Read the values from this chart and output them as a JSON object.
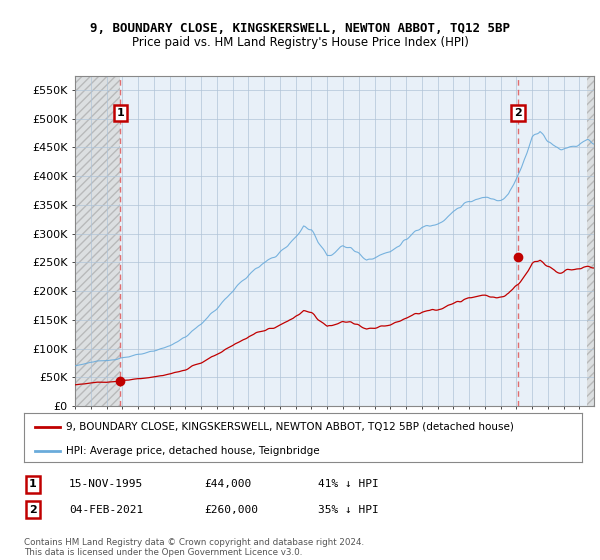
{
  "title": "9, BOUNDARY CLOSE, KINGSKERSWELL, NEWTON ABBOT, TQ12 5BP",
  "subtitle": "Price paid vs. HM Land Registry's House Price Index (HPI)",
  "ylabel_values": [
    "£0",
    "£50K",
    "£100K",
    "£150K",
    "£200K",
    "£250K",
    "£300K",
    "£350K",
    "£400K",
    "£450K",
    "£500K",
    "£550K"
  ],
  "y_ticks": [
    0,
    50000,
    100000,
    150000,
    200000,
    250000,
    300000,
    350000,
    400000,
    450000,
    500000,
    550000
  ],
  "ylim": [
    0,
    575000
  ],
  "xlim_start": 1993.0,
  "xlim_end": 2025.92,
  "x_ticks": [
    1993,
    1994,
    1995,
    1996,
    1997,
    1998,
    1999,
    2000,
    2001,
    2002,
    2003,
    2004,
    2005,
    2006,
    2007,
    2008,
    2009,
    2010,
    2011,
    2012,
    2013,
    2014,
    2015,
    2016,
    2017,
    2018,
    2019,
    2020,
    2021,
    2022,
    2023,
    2024,
    2025
  ],
  "hpi_color": "#6aabdb",
  "price_color": "#c00000",
  "sale1_date": 1995.875,
  "sale1_price": 44000,
  "sale2_date": 2021.09,
  "sale2_price": 260000,
  "legend_line1": "9, BOUNDARY CLOSE, KINGSKERSWELL, NEWTON ABBOT, TQ12 5BP (detached house)",
  "legend_line2": "HPI: Average price, detached house, Teignbridge",
  "table_row1": [
    "1",
    "15-NOV-1995",
    "£44,000",
    "41% ↓ HPI"
  ],
  "table_row2": [
    "2",
    "04-FEB-2021",
    "£260,000",
    "35% ↓ HPI"
  ],
  "footnote": "Contains HM Land Registry data © Crown copyright and database right 2024.\nThis data is licensed under the Open Government Licence v3.0.",
  "bg_color": "#e8f0f8",
  "grid_color": "#b0c4d8",
  "vline_color": "#e06060",
  "hatch_start": 1993.0,
  "hatch_end": 1995.875,
  "hatch_right_start": 2025.5
}
